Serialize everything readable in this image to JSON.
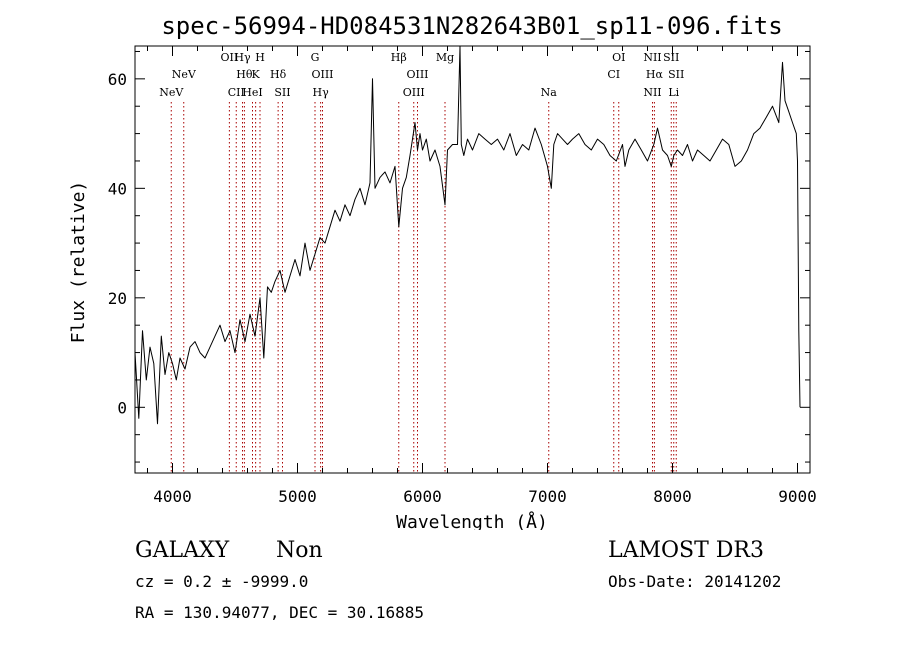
{
  "chart_data": {
    "type": "line",
    "title": "spec-56994-HD084531N282643B01_sp11-096.fits",
    "xlabel": "Wavelength (Å)",
    "ylabel": "Flux (relative)",
    "xlim": [
      3700,
      9100
    ],
    "ylim": [
      -12,
      66
    ],
    "x_ticks": [
      4000,
      5000,
      6000,
      7000,
      8000,
      9000
    ],
    "y_ticks": [
      0,
      20,
      40,
      60
    ],
    "grid": false,
    "legend": "none",
    "series": [
      {
        "name": "flux",
        "x": [
          3700,
          3730,
          3760,
          3790,
          3820,
          3850,
          3880,
          3910,
          3940,
          3970,
          4000,
          4030,
          4060,
          4100,
          4140,
          4180,
          4220,
          4260,
          4300,
          4340,
          4380,
          4420,
          4460,
          4500,
          4540,
          4580,
          4620,
          4660,
          4700,
          4730,
          4760,
          4790,
          4820,
          4860,
          4900,
          4940,
          4980,
          5020,
          5060,
          5100,
          5140,
          5180,
          5220,
          5260,
          5300,
          5340,
          5380,
          5420,
          5460,
          5500,
          5540,
          5580,
          5600,
          5620,
          5660,
          5700,
          5740,
          5780,
          5810,
          5840,
          5870,
          5900,
          5920,
          5940,
          5960,
          5980,
          6000,
          6030,
          6060,
          6100,
          6140,
          6180,
          6200,
          6240,
          6280,
          6300,
          6310,
          6330,
          6360,
          6400,
          6450,
          6500,
          6550,
          6600,
          6650,
          6700,
          6750,
          6800,
          6850,
          6900,
          6950,
          7000,
          7030,
          7050,
          7080,
          7120,
          7160,
          7200,
          7250,
          7300,
          7350,
          7400,
          7450,
          7500,
          7550,
          7600,
          7620,
          7650,
          7700,
          7750,
          7800,
          7850,
          7880,
          7920,
          7960,
          7990,
          8010,
          8040,
          8080,
          8120,
          8160,
          8200,
          8250,
          8300,
          8350,
          8400,
          8450,
          8500,
          8550,
          8600,
          8650,
          8700,
          8750,
          8800,
          8850,
          8880,
          8900,
          8930,
          8960,
          8990,
          9000,
          9010,
          9020
        ],
        "y": [
          10,
          -2,
          14,
          5,
          11,
          8,
          -3,
          13,
          6,
          10,
          8,
          5,
          9,
          7,
          11,
          12,
          10,
          9,
          11,
          13,
          15,
          12,
          14,
          10,
          16,
          12,
          17,
          13,
          20,
          9,
          22,
          21,
          23,
          25,
          21,
          24,
          27,
          24,
          30,
          25,
          28,
          31,
          30,
          33,
          36,
          34,
          37,
          35,
          38,
          40,
          37,
          41,
          60,
          40,
          42,
          43,
          41,
          44,
          33,
          40,
          42,
          46,
          49,
          52,
          47,
          50,
          47,
          49,
          45,
          47,
          44,
          37,
          47,
          48,
          48,
          66,
          48,
          46,
          49,
          47,
          50,
          49,
          48,
          49,
          47,
          50,
          46,
          48,
          47,
          51,
          48,
          44,
          40,
          48,
          50,
          49,
          48,
          49,
          50,
          48,
          47,
          49,
          48,
          46,
          45,
          48,
          44,
          47,
          49,
          47,
          45,
          48,
          51,
          47,
          46,
          44,
          46,
          47,
          46,
          48,
          45,
          47,
          46,
          45,
          47,
          49,
          48,
          44,
          45,
          47,
          50,
          51,
          53,
          55,
          52,
          63,
          56,
          54,
          52,
          50,
          45,
          14,
          0
        ]
      }
    ],
    "line_markers": [
      {
        "label": "NeV",
        "wavelength": 3990,
        "row": 3
      },
      {
        "label": "NeV",
        "wavelength": 4090,
        "row": 2
      },
      {
        "label": "OII",
        "wavelength": 4455,
        "row": 1
      },
      {
        "label": "CII",
        "wavelength": 4510,
        "row": 3
      },
      {
        "label": "Hγ",
        "wavelength": 4560,
        "row": 1
      },
      {
        "label": "Hθ",
        "wavelength": 4575,
        "row": 2
      },
      {
        "label": "HeI",
        "wavelength": 4640,
        "row": 3
      },
      {
        "label": "H",
        "wavelength": 4700,
        "row": 1
      },
      {
        "label": "K",
        "wavelength": 4665,
        "row": 2
      },
      {
        "label": "Hδ",
        "wavelength": 4845,
        "row": 2
      },
      {
        "label": "SII",
        "wavelength": 4880,
        "row": 3
      },
      {
        "label": "G",
        "wavelength": 5140,
        "row": 1
      },
      {
        "label": "OIII",
        "wavelength": 5200,
        "row": 2
      },
      {
        "label": "Hγ",
        "wavelength": 5185,
        "row": 3
      },
      {
        "label": "Hβ",
        "wavelength": 5810,
        "row": 1
      },
      {
        "label": "OIII",
        "wavelength": 5960,
        "row": 2
      },
      {
        "label": "OIII",
        "wavelength": 5930,
        "row": 3
      },
      {
        "label": "Mg",
        "wavelength": 6180,
        "row": 1
      },
      {
        "label": "Na",
        "wavelength": 7010,
        "row": 3
      },
      {
        "label": "OI",
        "wavelength": 7570,
        "row": 1
      },
      {
        "label": "CI",
        "wavelength": 7530,
        "row": 2
      },
      {
        "label": "NII",
        "wavelength": 7840,
        "row": 1
      },
      {
        "label": "SII",
        "wavelength": 7990,
        "row": 1
      },
      {
        "label": "Hα",
        "wavelength": 7855,
        "row": 2
      },
      {
        "label": "SII",
        "wavelength": 8030,
        "row": 2
      },
      {
        "label": "NII",
        "wavelength": 7840,
        "row": 3
      },
      {
        "label": "Li",
        "wavelength": 8010,
        "row": 3
      }
    ]
  },
  "footer": {
    "object_class": "GALAXY",
    "subclass": "Non",
    "survey": "LAMOST DR3",
    "redshift_text": "cz = 0.2 ± -9999.0",
    "obs_date": "Obs-Date: 20141202",
    "coords": "RA = 130.94077, DEC =  30.16885"
  },
  "colors": {
    "line": "#000000",
    "marker_line": "#a80000",
    "axis": "#000000"
  }
}
